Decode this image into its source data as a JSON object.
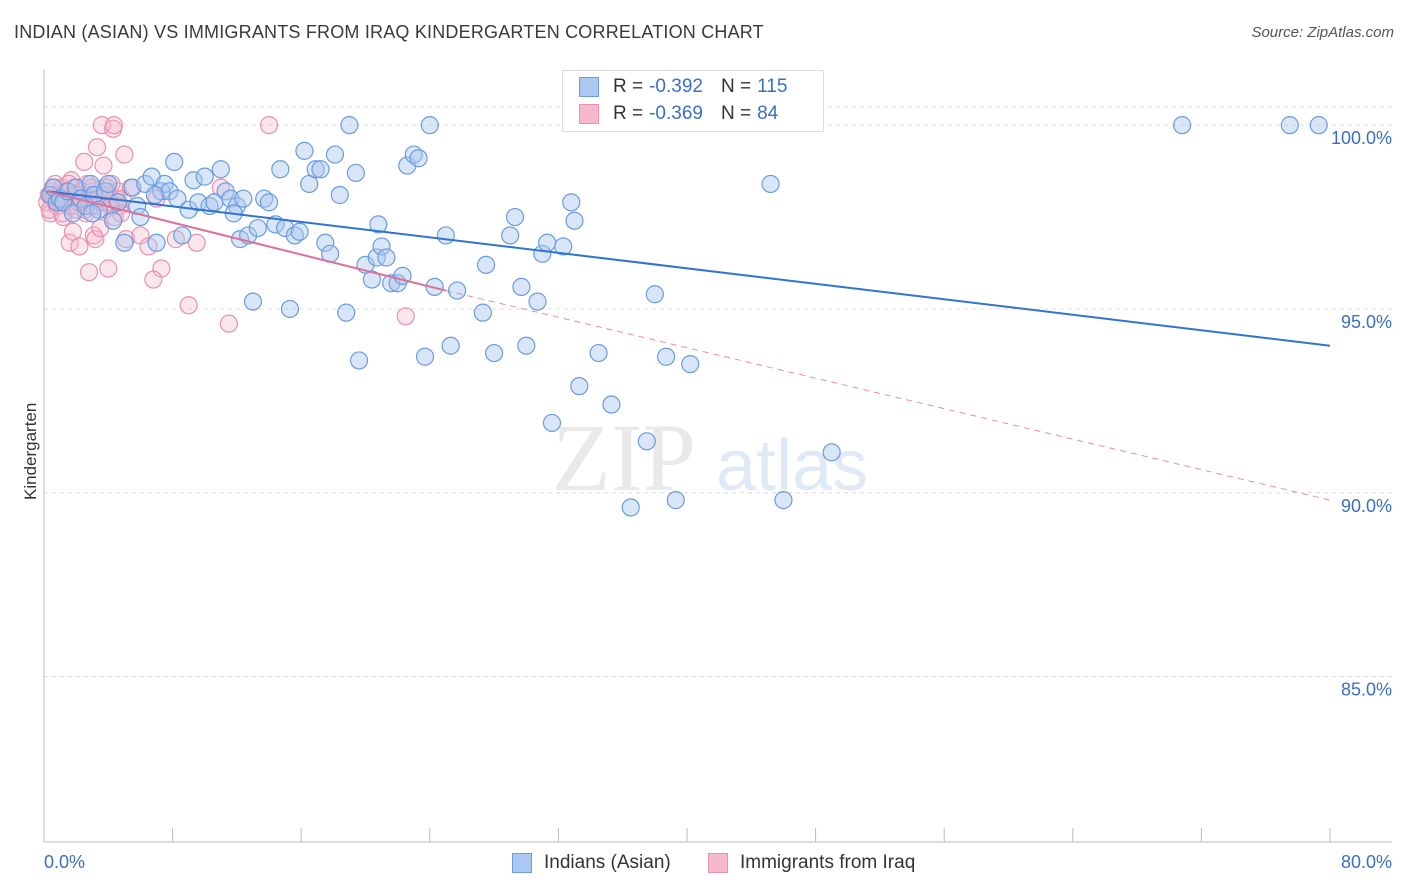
{
  "header": {
    "title": "INDIAN (ASIAN) VS IMMIGRANTS FROM IRAQ KINDERGARTEN CORRELATION CHART",
    "source": "Source: ZipAtlas.com"
  },
  "legend": {
    "row1": {
      "r_label": "R =",
      "r_value": "-0.392",
      "n_label": "N =",
      "n_value": "115"
    },
    "row2": {
      "r_label": "R =",
      "r_value": "-0.369",
      "n_label": "N =",
      "n_value": "84"
    }
  },
  "bottom_legend": {
    "series1": "Indians (Asian)",
    "series2": "Immigrants from Iraq"
  },
  "watermark": {
    "zip": "ZIP",
    "atlas": "atlas"
  },
  "colors": {
    "blue_fill": "#aac8f0",
    "blue_stroke": "#6a9ce0",
    "blue_line": "#2f74d0",
    "pink_fill": "#f5b8cc",
    "pink_stroke": "#e890b0",
    "pink_line": "#e0709a",
    "axis_text": "#3b6fc4",
    "grid": "#dcdcdc"
  },
  "chart_data": {
    "type": "scatter",
    "title": "INDIAN (ASIAN) VS IMMIGRANTS FROM IRAQ KINDERGARTEN CORRELATION CHART",
    "xlabel": "",
    "ylabel": "Kindergarten",
    "xlim": [
      0,
      80
    ],
    "ylim": [
      80.5,
      101.5
    ],
    "x_tick_labels": [
      "0.0%",
      "80.0%"
    ],
    "y_ticks": [
      85,
      90,
      95,
      100
    ],
    "y_tick_labels": [
      "85.0%",
      "90.0%",
      "95.0%",
      "100.0%"
    ],
    "grid": true,
    "legend_position": "top-center",
    "series": [
      {
        "name": "Indians (Asian)",
        "r": -0.392,
        "n": 115,
        "trend": {
          "x": [
            0.2,
            80
          ],
          "y": [
            98.2,
            94.0
          ]
        },
        "points": [
          [
            0.4,
            98.1
          ],
          [
            0.6,
            98.3
          ],
          [
            0.8,
            97.9
          ],
          [
            1.0,
            98.0
          ],
          [
            1.2,
            97.9
          ],
          [
            1.5,
            98.2
          ],
          [
            1.8,
            97.6
          ],
          [
            2.0,
            98.3
          ],
          [
            2.3,
            98.0
          ],
          [
            2.6,
            97.8
          ],
          [
            2.9,
            98.4
          ],
          [
            3.1,
            98.1
          ],
          [
            3.4,
            97.7
          ],
          [
            3.8,
            98.2
          ],
          [
            4.0,
            98.4
          ],
          [
            4.3,
            97.4
          ],
          [
            4.6,
            97.9
          ],
          [
            5.0,
            96.8
          ],
          [
            5.5,
            98.3
          ],
          [
            5.8,
            97.8
          ],
          [
            6.0,
            97.5
          ],
          [
            6.3,
            98.4
          ],
          [
            6.7,
            98.6
          ],
          [
            7.0,
            96.8
          ],
          [
            7.3,
            98.2
          ],
          [
            7.5,
            98.4
          ],
          [
            7.8,
            98.2
          ],
          [
            8.1,
            99.0
          ],
          [
            8.3,
            98.0
          ],
          [
            8.6,
            97.0
          ],
          [
            9.0,
            97.7
          ],
          [
            9.3,
            98.5
          ],
          [
            9.6,
            97.9
          ],
          [
            10.0,
            98.6
          ],
          [
            10.3,
            97.8
          ],
          [
            10.6,
            97.9
          ],
          [
            11.0,
            98.8
          ],
          [
            11.3,
            98.2
          ],
          [
            11.6,
            98.0
          ],
          [
            12.0,
            97.8
          ],
          [
            12.2,
            96.9
          ],
          [
            12.4,
            98.0
          ],
          [
            12.7,
            97.0
          ],
          [
            13.0,
            95.2
          ],
          [
            13.3,
            97.2
          ],
          [
            13.7,
            98.0
          ],
          [
            14.0,
            97.9
          ],
          [
            14.4,
            97.3
          ],
          [
            14.7,
            98.8
          ],
          [
            15.0,
            97.2
          ],
          [
            15.3,
            95.0
          ],
          [
            15.6,
            97.0
          ],
          [
            15.9,
            97.1
          ],
          [
            16.2,
            99.3
          ],
          [
            16.5,
            98.4
          ],
          [
            16.9,
            98.8
          ],
          [
            17.2,
            98.8
          ],
          [
            17.5,
            96.8
          ],
          [
            17.8,
            96.5
          ],
          [
            18.1,
            99.2
          ],
          [
            18.4,
            98.1
          ],
          [
            18.8,
            94.9
          ],
          [
            19.0,
            100.0
          ],
          [
            19.4,
            98.7
          ],
          [
            19.6,
            93.6
          ],
          [
            20.0,
            96.2
          ],
          [
            20.4,
            95.8
          ],
          [
            20.7,
            96.4
          ],
          [
            21.0,
            96.7
          ],
          [
            21.3,
            96.4
          ],
          [
            21.6,
            95.7
          ],
          [
            22.0,
            95.7
          ],
          [
            22.3,
            95.9
          ],
          [
            22.6,
            98.9
          ],
          [
            23.0,
            99.2
          ],
          [
            23.3,
            99.1
          ],
          [
            23.7,
            93.7
          ],
          [
            24.0,
            100.0
          ],
          [
            24.3,
            95.6
          ],
          [
            25.0,
            97.0
          ],
          [
            25.3,
            94.0
          ],
          [
            25.7,
            95.5
          ],
          [
            27.3,
            94.9
          ],
          [
            27.5,
            96.2
          ],
          [
            28.0,
            93.8
          ],
          [
            29.0,
            97.0
          ],
          [
            29.3,
            97.5
          ],
          [
            29.7,
            95.6
          ],
          [
            30.0,
            94.0
          ],
          [
            30.7,
            95.2
          ],
          [
            31.0,
            96.5
          ],
          [
            31.3,
            96.8
          ],
          [
            31.6,
            91.9
          ],
          [
            32.3,
            96.7
          ],
          [
            32.8,
            97.9
          ],
          [
            33.0,
            97.4
          ],
          [
            33.3,
            92.9
          ],
          [
            34.5,
            93.8
          ],
          [
            35.3,
            92.4
          ],
          [
            36.5,
            89.6
          ],
          [
            37.5,
            91.4
          ],
          [
            38.0,
            95.4
          ],
          [
            38.7,
            93.7
          ],
          [
            39.3,
            89.8
          ],
          [
            40.2,
            93.5
          ],
          [
            45.2,
            98.4
          ],
          [
            46.0,
            89.8
          ],
          [
            49.0,
            91.1
          ],
          [
            70.8,
            100.0
          ],
          [
            77.5,
            100.0
          ],
          [
            79.3,
            100.0
          ],
          [
            3.0,
            97.6
          ],
          [
            6.9,
            98.1
          ],
          [
            20.8,
            97.3
          ],
          [
            11.8,
            97.6
          ]
        ]
      },
      {
        "name": "Immigrants from Iraq",
        "r": -0.369,
        "n": 84,
        "trend": {
          "x": [
            0.2,
            25
          ],
          "y": [
            98.2,
            95.5
          ]
        },
        "trend_dashed": {
          "x": [
            25,
            80
          ],
          "y": [
            95.5,
            89.8
          ]
        },
        "points": [
          [
            0.2,
            97.9
          ],
          [
            0.3,
            98.1
          ],
          [
            0.4,
            97.6
          ],
          [
            0.5,
            98.2
          ],
          [
            0.6,
            98.0
          ],
          [
            0.7,
            98.4
          ],
          [
            0.8,
            97.8
          ],
          [
            0.9,
            98.1
          ],
          [
            1.0,
            97.9
          ],
          [
            1.1,
            98.3
          ],
          [
            1.2,
            97.5
          ],
          [
            1.3,
            98.0
          ],
          [
            1.4,
            98.2
          ],
          [
            1.5,
            97.8
          ],
          [
            1.6,
            96.8
          ],
          [
            1.7,
            98.5
          ],
          [
            1.8,
            97.1
          ],
          [
            1.9,
            98.3
          ],
          [
            2.0,
            97.7
          ],
          [
            2.1,
            98.0
          ],
          [
            2.2,
            96.7
          ],
          [
            2.3,
            97.9
          ],
          [
            2.4,
            98.1
          ],
          [
            2.5,
            99.0
          ],
          [
            2.6,
            97.6
          ],
          [
            2.7,
            98.4
          ],
          [
            2.8,
            96.0
          ],
          [
            2.9,
            97.8
          ],
          [
            3.0,
            98.2
          ],
          [
            3.1,
            97.0
          ],
          [
            3.2,
            96.9
          ],
          [
            3.3,
            99.4
          ],
          [
            3.4,
            98.1
          ],
          [
            3.5,
            97.2
          ],
          [
            3.6,
            100.0
          ],
          [
            3.7,
            98.9
          ],
          [
            3.8,
            97.7
          ],
          [
            3.9,
            98.3
          ],
          [
            4.0,
            96.1
          ],
          [
            4.1,
            97.9
          ],
          [
            4.2,
            98.4
          ],
          [
            4.3,
            99.9
          ],
          [
            4.4,
            97.5
          ],
          [
            4.5,
            98.0
          ],
          [
            4.6,
            98.2
          ],
          [
            4.7,
            97.8
          ],
          [
            4.8,
            97.6
          ],
          [
            4.9,
            98.0
          ],
          [
            5.0,
            99.2
          ],
          [
            5.1,
            96.9
          ],
          [
            5.4,
            98.3
          ],
          [
            6.0,
            97.0
          ],
          [
            6.5,
            96.7
          ],
          [
            7.0,
            98.0
          ],
          [
            7.3,
            96.1
          ],
          [
            8.2,
            96.9
          ],
          [
            9.0,
            95.1
          ],
          [
            9.5,
            96.8
          ],
          [
            11.0,
            98.3
          ],
          [
            11.5,
            94.6
          ],
          [
            14.0,
            100.0
          ],
          [
            22.5,
            94.8
          ],
          [
            0.35,
            97.7
          ],
          [
            0.55,
            98.3
          ],
          [
            0.75,
            97.9
          ],
          [
            0.95,
            98.0
          ],
          [
            1.15,
            97.6
          ],
          [
            1.35,
            98.2
          ],
          [
            1.55,
            98.4
          ],
          [
            1.75,
            97.8
          ],
          [
            1.95,
            98.1
          ],
          [
            2.15,
            97.9
          ],
          [
            2.35,
            98.2
          ],
          [
            2.55,
            97.7
          ],
          [
            2.75,
            98.0
          ],
          [
            2.95,
            98.3
          ],
          [
            3.15,
            97.8
          ],
          [
            3.35,
            98.0
          ],
          [
            3.55,
            97.9
          ],
          [
            3.75,
            98.1
          ],
          [
            3.95,
            98.2
          ],
          [
            4.15,
            97.8
          ],
          [
            4.35,
            100.0
          ],
          [
            6.8,
            95.8
          ]
        ]
      }
    ]
  }
}
